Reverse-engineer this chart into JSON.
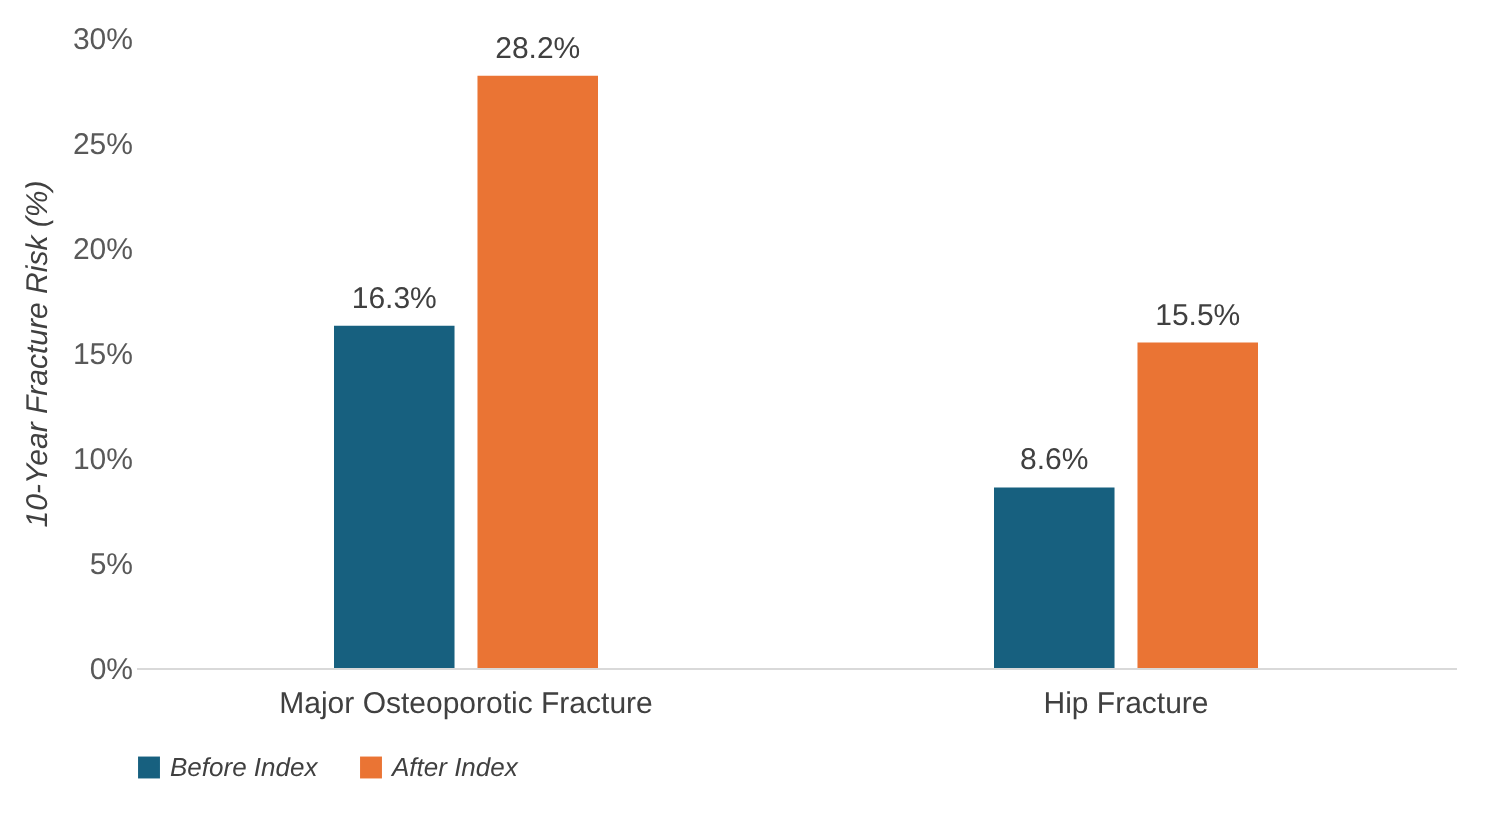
{
  "chart_data": {
    "type": "bar",
    "ylabel": "10-Year Fracture Risk (%)",
    "categories": [
      "Major Osteoporotic Fracture",
      "Hip Fracture"
    ],
    "series": [
      {
        "name": "Before Index",
        "color": "#17607f",
        "values": [
          16.3,
          8.6
        ],
        "value_labels": [
          "16.3%",
          "8.6%"
        ]
      },
      {
        "name": "After Index",
        "color": "#ea7434",
        "values": [
          28.2,
          15.5
        ],
        "value_labels": [
          "28.2%",
          "15.5%"
        ]
      }
    ],
    "ylim": [
      0,
      30
    ],
    "yticks": [
      {
        "value": 0,
        "label": "0%"
      },
      {
        "value": 5,
        "label": "5%"
      },
      {
        "value": 10,
        "label": "10%"
      },
      {
        "value": 15,
        "label": "15%"
      },
      {
        "value": 20,
        "label": "20%"
      },
      {
        "value": 25,
        "label": "25%"
      },
      {
        "value": 30,
        "label": "30%"
      }
    ],
    "grid": false,
    "legend": "bottom"
  }
}
